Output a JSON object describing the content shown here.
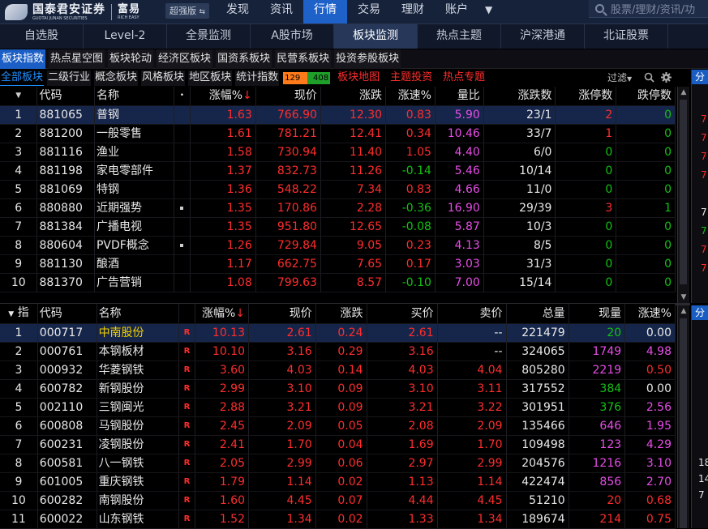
{
  "brand": {
    "name": "国泰君安证券",
    "english": "GUOTAI JUNAN SECURITIES",
    "product": "富易",
    "product_en": "RICH EASY",
    "edition": "超强版"
  },
  "topnav": [
    "发现",
    "资讯",
    "行情",
    "交易",
    "理财",
    "账户"
  ],
  "topnav_active": "行情",
  "search": {
    "placeholder": "股票/理财/资讯/功"
  },
  "nav2": [
    "自选股",
    "Level-2",
    "全景监测",
    "A股市场",
    "板块监测",
    "热点主题",
    "沪深港通",
    "北证股票"
  ],
  "nav2_active": "板块监测",
  "nav3": [
    "板块指数",
    "热点星空图",
    "板块轮动",
    "经济区板块",
    "国资系板块",
    "民营系板块",
    "投资参股板块"
  ],
  "nav3_active": "板块指数",
  "nav4": [
    "全部板块",
    "二级行业",
    "概念板块",
    "风格板块",
    "地区板块",
    "统计指数"
  ],
  "nav4_active": "全部板块",
  "breadth": {
    "up": "129",
    "down": "408"
  },
  "nav4_red": [
    "板块地图",
    "主题投资",
    "热点专题"
  ],
  "filter_label": "过滤",
  "side_label": "分",
  "colors": {
    "up": "#ff2d2d",
    "down": "#12c212",
    "selected_row": "#16264a",
    "accent": "#1d61c9"
  },
  "sector_table": {
    "headers": [
      "代码",
      "名称",
      "涨幅%",
      "现价",
      "涨跌",
      "涨速%",
      "量比",
      "涨跌数",
      "涨停数",
      "跌停数"
    ],
    "sort_col": "涨幅%",
    "rows": [
      {
        "no": "1",
        "code": "881065",
        "name": "普钢",
        "pct": "1.63",
        "price": "766.90",
        "chg": "12.30",
        "speed": "0.83",
        "vr": "5.90",
        "ud": "23/1",
        "lu": "2",
        "ld": "0",
        "flag": ""
      },
      {
        "no": "2",
        "code": "881200",
        "name": "一般零售",
        "pct": "1.61",
        "price": "781.21",
        "chg": "12.41",
        "speed": "0.34",
        "vr": "10.46",
        "ud": "33/7",
        "lu": "1",
        "ld": "0",
        "flag": ""
      },
      {
        "no": "3",
        "code": "881116",
        "name": "渔业",
        "pct": "1.58",
        "price": "730.94",
        "chg": "11.40",
        "speed": "1.05",
        "vr": "4.40",
        "ud": "6/0",
        "lu": "0",
        "ld": "0",
        "flag": ""
      },
      {
        "no": "4",
        "code": "881198",
        "name": "家电零部件",
        "pct": "1.37",
        "price": "832.73",
        "chg": "11.26",
        "speed": "-0.14",
        "vr": "5.46",
        "ud": "10/14",
        "lu": "0",
        "ld": "0",
        "flag": ""
      },
      {
        "no": "5",
        "code": "881069",
        "name": "特钢",
        "pct": "1.36",
        "price": "548.22",
        "chg": "7.34",
        "speed": "0.83",
        "vr": "4.66",
        "ud": "11/0",
        "lu": "0",
        "ld": "0",
        "flag": ""
      },
      {
        "no": "6",
        "code": "880880",
        "name": "近期强势",
        "pct": "1.35",
        "price": "170.86",
        "chg": "2.28",
        "speed": "-0.36",
        "vr": "16.90",
        "ud": "29/39",
        "lu": "3",
        "ld": "1",
        "flag": "sq"
      },
      {
        "no": "7",
        "code": "881384",
        "name": "广播电视",
        "pct": "1.35",
        "price": "951.80",
        "chg": "12.65",
        "speed": "-0.08",
        "vr": "5.87",
        "ud": "10/3",
        "lu": "0",
        "ld": "0",
        "flag": ""
      },
      {
        "no": "8",
        "code": "880604",
        "name": "PVDF概念",
        "pct": "1.26",
        "price": "729.84",
        "chg": "9.05",
        "speed": "0.23",
        "vr": "4.13",
        "ud": "8/5",
        "lu": "0",
        "ld": "0",
        "flag": "sq"
      },
      {
        "no": "9",
        "code": "881130",
        "name": "酿酒",
        "pct": "1.17",
        "price": "662.75",
        "chg": "7.65",
        "speed": "0.17",
        "vr": "3.03",
        "ud": "31/3",
        "lu": "0",
        "ld": "0",
        "flag": ""
      },
      {
        "no": "10",
        "code": "881370",
        "name": "广告营销",
        "pct": "1.08",
        "price": "799.63",
        "chg": "8.57",
        "speed": "-0.10",
        "vr": "7.00",
        "ud": "15/14",
        "lu": "0",
        "ld": "0",
        "flag": ""
      }
    ]
  },
  "stock_table": {
    "headers": [
      "指",
      "代码",
      "名称",
      "涨幅%",
      "现价",
      "涨跌",
      "买价",
      "卖价",
      "总量",
      "现量",
      "涨速%"
    ],
    "sort_col": "涨幅%",
    "rows": [
      {
        "no": "1",
        "code": "000717",
        "name": "中南股份",
        "mark": "R",
        "pct": "10.13",
        "price": "2.61",
        "chg": "0.24",
        "bid": "2.61",
        "ask": "--",
        "vol": "221479",
        "cur": "20",
        "speed": "0.00",
        "cur_c": "grn",
        "sp_c": "wht"
      },
      {
        "no": "2",
        "code": "000761",
        "name": "本钢板材",
        "mark": "R",
        "pct": "10.10",
        "price": "3.16",
        "chg": "0.29",
        "bid": "3.16",
        "ask": "--",
        "vol": "324065",
        "cur": "1749",
        "speed": "4.98",
        "cur_c": "mag",
        "sp_c": "mag"
      },
      {
        "no": "3",
        "code": "000932",
        "name": "华菱钢铁",
        "mark": "R",
        "pct": "3.60",
        "price": "4.03",
        "chg": "0.14",
        "bid": "4.03",
        "ask": "4.04",
        "vol": "805280",
        "cur": "2219",
        "speed": "0.50",
        "cur_c": "mag",
        "sp_c": "red"
      },
      {
        "no": "4",
        "code": "600782",
        "name": "新钢股份",
        "mark": "R",
        "pct": "2.99",
        "price": "3.10",
        "chg": "0.09",
        "bid": "3.10",
        "ask": "3.11",
        "vol": "317552",
        "cur": "384",
        "speed": "0.00",
        "cur_c": "grn",
        "sp_c": "wht"
      },
      {
        "no": "5",
        "code": "002110",
        "name": "三钢闽光",
        "mark": "R",
        "pct": "2.88",
        "price": "3.21",
        "chg": "0.09",
        "bid": "3.21",
        "ask": "3.22",
        "vol": "301951",
        "cur": "376",
        "speed": "2.56",
        "cur_c": "grn",
        "sp_c": "mag"
      },
      {
        "no": "6",
        "code": "600808",
        "name": "马钢股份",
        "mark": "R",
        "pct": "2.45",
        "price": "2.09",
        "chg": "0.05",
        "bid": "2.08",
        "ask": "2.09",
        "vol": "135466",
        "cur": "646",
        "speed": "1.95",
        "cur_c": "mag",
        "sp_c": "mag"
      },
      {
        "no": "7",
        "code": "600231",
        "name": "凌钢股份",
        "mark": "R",
        "pct": "2.41",
        "price": "1.70",
        "chg": "0.04",
        "bid": "1.69",
        "ask": "1.70",
        "vol": "109498",
        "cur": "123",
        "speed": "4.29",
        "cur_c": "mag",
        "sp_c": "mag"
      },
      {
        "no": "8",
        "code": "600581",
        "name": "八一钢铁",
        "mark": "R",
        "pct": "2.05",
        "price": "2.99",
        "chg": "0.06",
        "bid": "2.97",
        "ask": "2.99",
        "vol": "204576",
        "cur": "1216",
        "speed": "3.10",
        "cur_c": "mag",
        "sp_c": "mag"
      },
      {
        "no": "9",
        "code": "601005",
        "name": "重庆钢铁",
        "mark": "R",
        "pct": "1.79",
        "price": "1.14",
        "chg": "0.02",
        "bid": "1.13",
        "ask": "1.14",
        "vol": "422474",
        "cur": "856",
        "speed": "2.70",
        "cur_c": "mag",
        "sp_c": "mag"
      },
      {
        "no": "10",
        "code": "600282",
        "name": "南钢股份",
        "mark": "R",
        "pct": "1.60",
        "price": "4.45",
        "chg": "0.07",
        "bid": "4.44",
        "ask": "4.45",
        "vol": "51210",
        "cur": "20",
        "speed": "0.68",
        "cur_c": "red",
        "sp_c": "red"
      },
      {
        "no": "11",
        "code": "600022",
        "name": "山东钢铁",
        "mark": "R",
        "pct": "1.52",
        "price": "1.34",
        "chg": "0.02",
        "bid": "1.33",
        "ask": "1.34",
        "vol": "189674",
        "cur": "214",
        "speed": "0.75",
        "cur_c": "red",
        "sp_c": "red"
      }
    ]
  },
  "side_digits_top": [
    "7",
    "7",
    "7",
    "7",
    "",
    "7",
    "7",
    "7",
    "7"
  ],
  "side_digits_bottom": [
    "18",
    "14",
    "7"
  ]
}
